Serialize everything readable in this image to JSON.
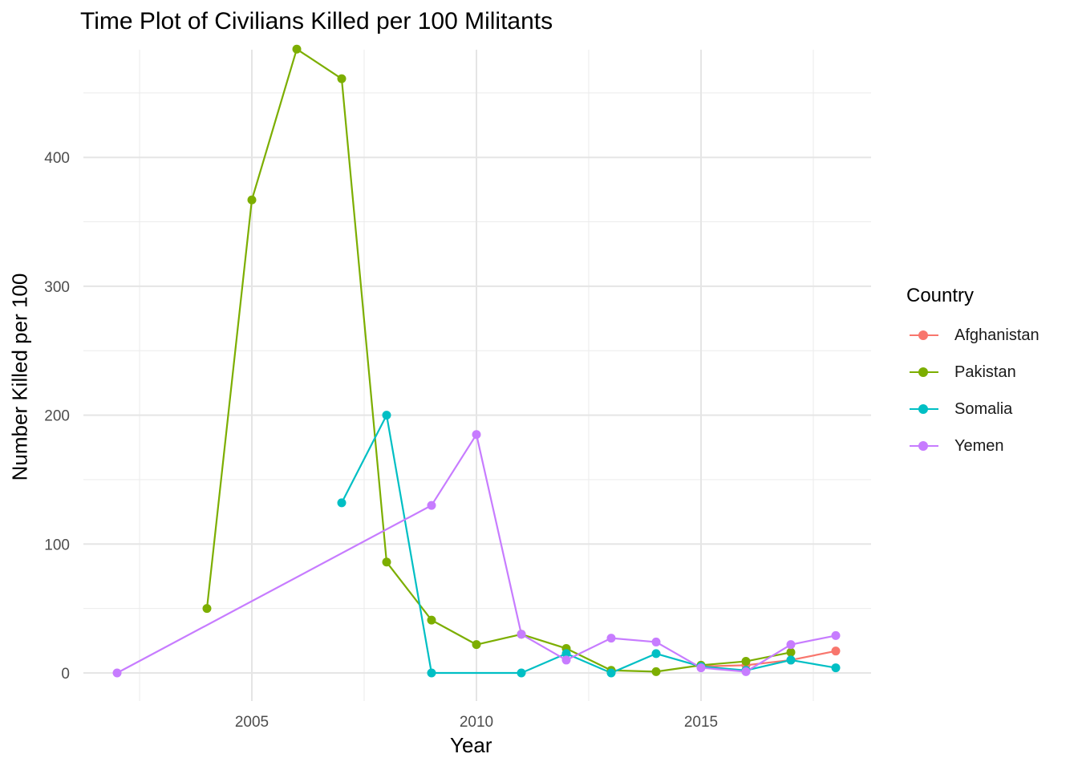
{
  "chart_data": {
    "type": "line",
    "title": "Time Plot of Civilians Killed per 100 Militants",
    "xlabel": "Year",
    "ylabel": "Number Killed per 100",
    "xlim": [
      2001.4,
      2018.8
    ],
    "ylim": [
      -20,
      484
    ],
    "x_ticks": [
      2005,
      2010,
      2015
    ],
    "x_tick_labels": [
      "2005",
      "2010",
      "2015"
    ],
    "y_ticks": [
      0,
      100,
      200,
      300,
      400
    ],
    "y_tick_labels": [
      "0",
      "100",
      "200",
      "300",
      "400"
    ],
    "grid": true,
    "legend": {
      "title": "Country",
      "position": "right"
    },
    "series": [
      {
        "name": "Afghanistan",
        "color": "#F8766D",
        "x": [
          2015,
          2016,
          2017,
          2018
        ],
        "y": [
          5,
          6,
          10,
          17
        ]
      },
      {
        "name": "Pakistan",
        "color": "#7CAE00",
        "x": [
          2004,
          2005,
          2006,
          2007,
          2008,
          2009,
          2010,
          2011,
          2012,
          2013,
          2014,
          2015,
          2016,
          2017
        ],
        "y": [
          50,
          367,
          484,
          461,
          86,
          41,
          22,
          30,
          19,
          2,
          1,
          6,
          9,
          16
        ]
      },
      {
        "name": "Somalia",
        "color": "#00BFC4",
        "x": [
          2007,
          2008,
          2009,
          2011,
          2012,
          2013,
          2014,
          2015,
          2016,
          2017,
          2018
        ],
        "y": [
          132,
          200,
          0,
          0,
          15,
          0,
          15,
          5,
          2,
          10,
          4
        ]
      },
      {
        "name": "Yemen",
        "color": "#C77CFF",
        "x": [
          2002,
          2009,
          2010,
          2011,
          2012,
          2013,
          2014,
          2015,
          2016,
          2017,
          2018
        ],
        "y": [
          0,
          130,
          185,
          30,
          10,
          27,
          24,
          4,
          1,
          22,
          29
        ]
      }
    ]
  }
}
